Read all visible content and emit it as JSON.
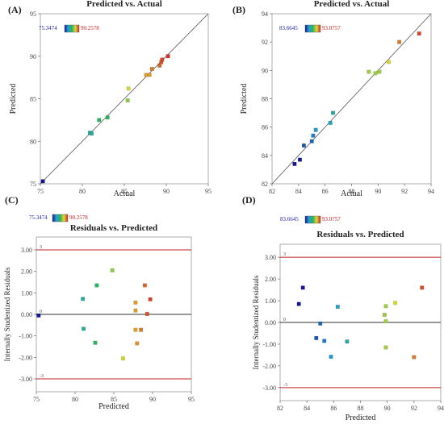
{
  "chart_data": [
    {
      "panel": "(A)",
      "type": "scatter",
      "title": "Predicted vs. Actual",
      "xlabel": "Actual",
      "ylabel": "Predicted",
      "xlim": [
        75,
        95
      ],
      "ylim": [
        75,
        95
      ],
      "xticks": [
        75,
        80,
        85,
        90,
        95
      ],
      "yticks": [
        75,
        80,
        85,
        90,
        95
      ],
      "color_scale": {
        "min": "75.3474",
        "max": "90.2578",
        "min_value": 75.3474,
        "max_value": 90.2578
      },
      "reference_line": [
        [
          74,
          74
        ],
        [
          96,
          96
        ]
      ],
      "points": [
        {
          "x": 75.3,
          "y": 75.3
        },
        {
          "x": 80.9,
          "y": 81.0
        },
        {
          "x": 81.1,
          "y": 80.9
        },
        {
          "x": 82.0,
          "y": 82.5
        },
        {
          "x": 83.0,
          "y": 82.8
        },
        {
          "x": 85.4,
          "y": 84.8
        },
        {
          "x": 85.5,
          "y": 86.2
        },
        {
          "x": 87.6,
          "y": 87.8
        },
        {
          "x": 88.0,
          "y": 87.8
        },
        {
          "x": 88.3,
          "y": 88.5
        },
        {
          "x": 89.2,
          "y": 88.9
        },
        {
          "x": 89.4,
          "y": 89.3
        },
        {
          "x": 89.5,
          "y": 89.6
        },
        {
          "x": 90.2,
          "y": 90.0
        }
      ]
    },
    {
      "panel": "(B)",
      "type": "scatter",
      "title": "Predicted vs. Actual",
      "xlabel": "Actual",
      "ylabel": "Predicted",
      "xlim": [
        82,
        94
      ],
      "ylim": [
        82,
        94
      ],
      "xticks": [
        82,
        84,
        86,
        88,
        90,
        92,
        94
      ],
      "yticks": [
        82,
        84,
        86,
        88,
        90,
        92,
        94
      ],
      "color_scale": {
        "min": "83.6645",
        "max": "93.0757",
        "min_value": 83.6645,
        "max_value": 93.0757
      },
      "reference_line": [
        [
          82,
          82
        ],
        [
          94,
          94
        ]
      ],
      "points": [
        {
          "x": 83.7,
          "y": 83.4
        },
        {
          "x": 84.1,
          "y": 83.7
        },
        {
          "x": 84.4,
          "y": 84.7
        },
        {
          "x": 85.0,
          "y": 85.0
        },
        {
          "x": 85.1,
          "y": 85.4
        },
        {
          "x": 85.3,
          "y": 85.8
        },
        {
          "x": 86.4,
          "y": 86.3
        },
        {
          "x": 86.6,
          "y": 87.0
        },
        {
          "x": 89.3,
          "y": 89.9
        },
        {
          "x": 89.8,
          "y": 89.8
        },
        {
          "x": 90.1,
          "y": 89.9
        },
        {
          "x": 90.8,
          "y": 90.6
        },
        {
          "x": 91.6,
          "y": 92.0
        },
        {
          "x": 93.1,
          "y": 92.6
        }
      ]
    },
    {
      "panel": "(C)",
      "type": "scatter",
      "title": "Residuals vs. Predicted",
      "xlabel": "Predicted",
      "ylabel": "Internally Studentized Residuals",
      "xlim": [
        75,
        95
      ],
      "ylim": [
        -3.6,
        3.6
      ],
      "xticks": [
        75,
        80,
        85,
        90,
        95
      ],
      "yticks": [
        -3,
        -2,
        -1,
        0,
        1,
        2,
        3
      ],
      "ytick_labels": [
        "-3.00",
        "-2.00",
        "-1.00",
        "0.00",
        "1.00",
        "2.00",
        "3.00"
      ],
      "color_scale": {
        "min": "75.3474",
        "max": "90.2578",
        "min_value": 75.3474,
        "max_value": 90.2578
      },
      "limit_lines": [
        {
          "value": 3,
          "label": "3"
        },
        {
          "value": 0,
          "label": "0"
        },
        {
          "value": -3,
          "label": "-3"
        }
      ],
      "points": [
        {
          "x": 75.3,
          "y": -0.05
        },
        {
          "x": 81.0,
          "y": 0.72
        },
        {
          "x": 81.1,
          "y": -0.67
        },
        {
          "x": 82.8,
          "y": 1.35
        },
        {
          "x": 82.6,
          "y": -1.32
        },
        {
          "x": 84.8,
          "y": 2.05
        },
        {
          "x": 86.2,
          "y": -2.05
        },
        {
          "x": 87.8,
          "y": 0.55
        },
        {
          "x": 87.8,
          "y": 0.18
        },
        {
          "x": 87.8,
          "y": -0.72
        },
        {
          "x": 88.0,
          "y": -1.35
        },
        {
          "x": 88.5,
          "y": -0.72
        },
        {
          "x": 89.0,
          "y": 1.35
        },
        {
          "x": 89.3,
          "y": 0.02
        },
        {
          "x": 89.7,
          "y": 0.7
        }
      ]
    },
    {
      "panel": "(D)",
      "type": "scatter",
      "title": "Residuals vs. Predicted",
      "xlabel": "Predicted",
      "ylabel": "Internally Studentized Residuals",
      "xlim": [
        82,
        94
      ],
      "ylim": [
        -3.6,
        3.6
      ],
      "xticks": [
        82,
        84,
        86,
        88,
        90,
        92,
        94
      ],
      "yticks": [
        -3,
        -2,
        -1,
        0,
        1,
        2,
        3
      ],
      "ytick_labels": [
        "-3.00",
        "-2.00",
        "-1.00",
        "0.00",
        "1.00",
        "2.00",
        "3.00"
      ],
      "color_scale": {
        "min": "83.6645",
        "max": "93.0757",
        "min_value": 83.6645,
        "max_value": 93.0757
      },
      "limit_lines": [
        {
          "value": 3,
          "label": "3"
        },
        {
          "value": 0,
          "label": "0"
        },
        {
          "value": -3,
          "label": "-3"
        }
      ],
      "points": [
        {
          "x": 83.4,
          "y": 0.85
        },
        {
          "x": 83.7,
          "y": 1.6
        },
        {
          "x": 84.7,
          "y": -0.72
        },
        {
          "x": 85.0,
          "y": -0.05
        },
        {
          "x": 85.3,
          "y": -0.85
        },
        {
          "x": 85.8,
          "y": -1.58
        },
        {
          "x": 86.3,
          "y": 0.72
        },
        {
          "x": 87.0,
          "y": -0.88
        },
        {
          "x": 89.8,
          "y": 0.35
        },
        {
          "x": 89.9,
          "y": 0.75
        },
        {
          "x": 89.9,
          "y": 0.05
        },
        {
          "x": 89.9,
          "y": -1.15
        },
        {
          "x": 90.6,
          "y": 0.9
        },
        {
          "x": 92.0,
          "y": -1.6
        },
        {
          "x": 92.6,
          "y": 1.6
        }
      ]
    }
  ]
}
